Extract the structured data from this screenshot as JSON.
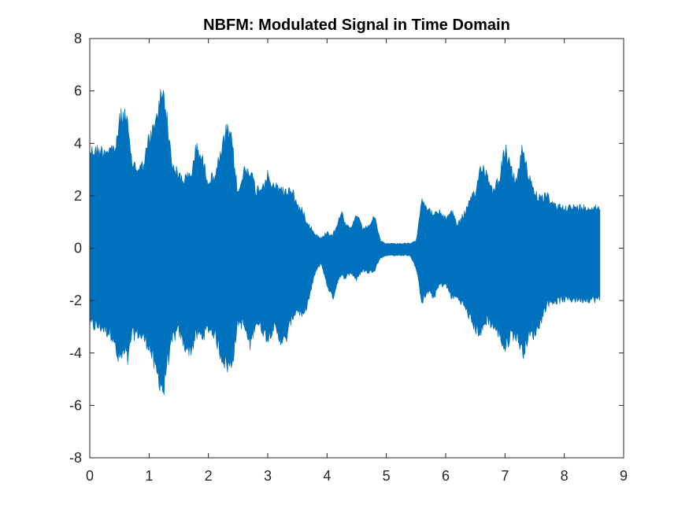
{
  "chart_data": {
    "type": "area",
    "title": "NBFM: Modulated Signal in Time Domain",
    "xlabel": "",
    "ylabel": "",
    "xlim": [
      0,
      9
    ],
    "ylim": [
      -8,
      8
    ],
    "xticks": [
      0,
      1,
      2,
      3,
      4,
      5,
      6,
      7,
      8,
      9
    ],
    "yticks": [
      -8,
      -6,
      -4,
      -2,
      0,
      2,
      4,
      6,
      8
    ],
    "grid": false,
    "series_color": "#0072BD",
    "series": [
      {
        "x": [
          0,
          0.2,
          0.4,
          0.45,
          0.5,
          0.6,
          0.65,
          0.7,
          0.8,
          0.9,
          1.0,
          1.1,
          1.2,
          1.25,
          1.3,
          1.35,
          1.4,
          1.5,
          1.6,
          1.7,
          1.8,
          1.9,
          2.0,
          2.1,
          2.2,
          2.3,
          2.35,
          2.4,
          2.5,
          2.6,
          2.7,
          2.8,
          2.9,
          3.0,
          3.1,
          3.2,
          3.3,
          3.4,
          3.5,
          3.6,
          3.7,
          3.8,
          3.9,
          4.0,
          4.1,
          4.2,
          4.25,
          4.3,
          4.4,
          4.5,
          4.6,
          4.7,
          4.8,
          4.9,
          5.0,
          5.2,
          5.4,
          5.5,
          5.6,
          5.7,
          5.8,
          5.9,
          6.0,
          6.1,
          6.2,
          6.3,
          6.4,
          6.5,
          6.6,
          6.7,
          6.8,
          6.9,
          7.0,
          7.1,
          7.2,
          7.3,
          7.4,
          7.5,
          7.6,
          7.7,
          7.8,
          8.0,
          8.2,
          8.4,
          8.6
        ],
        "upper": [
          4.0,
          4.0,
          4.1,
          4.2,
          5.3,
          5.5,
          4.8,
          3.6,
          3.3,
          3.4,
          4.5,
          5.0,
          6.3,
          6.5,
          5.3,
          4.2,
          3.4,
          3.0,
          2.9,
          3.0,
          4.2,
          3.6,
          2.8,
          3.0,
          3.8,
          4.8,
          4.7,
          4.3,
          2.2,
          3.2,
          3.3,
          2.4,
          2.6,
          3.0,
          2.5,
          2.6,
          2.3,
          2.5,
          1.8,
          1.5,
          1.0,
          0.6,
          0.4,
          0.7,
          0.6,
          1.2,
          1.6,
          1.0,
          0.8,
          1.4,
          0.8,
          0.9,
          1.3,
          0.3,
          0.2,
          0.2,
          0.2,
          0.3,
          2.1,
          1.6,
          1.4,
          1.5,
          1.2,
          1.6,
          1.0,
          1.4,
          1.9,
          2.3,
          3.5,
          3.0,
          2.4,
          2.9,
          4.1,
          3.2,
          2.8,
          4.2,
          3.0,
          2.4,
          2.0,
          2.2,
          1.8,
          1.7,
          1.7,
          1.7,
          1.7
        ],
        "lower": [
          -3.2,
          -3.3,
          -3.6,
          -4.5,
          -4.6,
          -4.4,
          -4.7,
          -3.6,
          -3.5,
          -3.7,
          -4.0,
          -5.0,
          -5.6,
          -6.0,
          -4.6,
          -4.4,
          -3.7,
          -3.4,
          -4.0,
          -4.2,
          -3.6,
          -3.6,
          -3.3,
          -3.5,
          -4.3,
          -4.8,
          -4.9,
          -4.7,
          -3.0,
          -3.2,
          -4.0,
          -3.0,
          -3.3,
          -3.7,
          -3.2,
          -3.7,
          -3.8,
          -2.9,
          -2.5,
          -2.8,
          -2.0,
          -1.0,
          -0.6,
          -1.5,
          -2.0,
          -1.2,
          -1.2,
          -1.2,
          -1.0,
          -1.3,
          -0.9,
          -1.0,
          -0.9,
          -0.4,
          -0.3,
          -0.3,
          -0.3,
          -0.8,
          -2.2,
          -1.8,
          -2.0,
          -1.5,
          -1.5,
          -2.0,
          -2.0,
          -2.3,
          -2.8,
          -3.3,
          -3.5,
          -2.9,
          -3.2,
          -3.5,
          -4.2,
          -3.5,
          -3.6,
          -4.3,
          -3.6,
          -3.5,
          -3.0,
          -2.3,
          -2.2,
          -2.1,
          -2.1,
          -2.1,
          -2.1
        ]
      }
    ]
  }
}
